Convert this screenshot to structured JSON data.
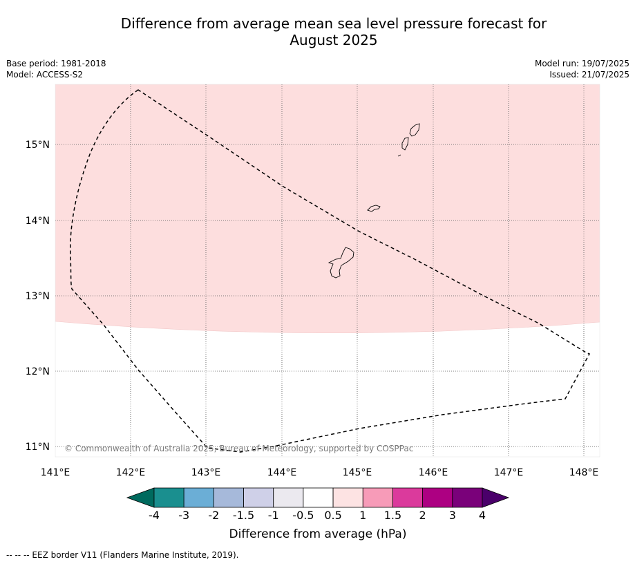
{
  "header": {
    "title_line1": "Difference from average mean sea level pressure forecast for",
    "title_line2": "August 2025",
    "base_period": "Base period: 1981-2018",
    "model": "Model: ACCESS-S2",
    "model_run": "Model run: 19/07/2025",
    "issued": "Issued: 21/07/2025"
  },
  "map": {
    "lon_ticks": [
      "141°E",
      "142°E",
      "143°E",
      "144°E",
      "145°E",
      "146°E",
      "147°E",
      "148°E"
    ],
    "lat_ticks": [
      "15°N",
      "14°N",
      "13°N",
      "12°N",
      "11°N"
    ],
    "copyright": "© Commonwealth of Australia 2025, Bureau of Meteorology, supported by COSPPac",
    "anomaly_color": "#fddede",
    "eez_line_color": "#000000"
  },
  "colorbar": {
    "labels": [
      "-4",
      "-3",
      "-2",
      "-1.5",
      "-1",
      "-0.5",
      "0.5",
      "1",
      "1.5",
      "2",
      "3",
      "4"
    ],
    "colors": [
      "#1a8f8f",
      "#6baed6",
      "#a6b9da",
      "#cfd0e8",
      "#ebe9ef",
      "#ffffff",
      "#fde3e3",
      "#f79bb8",
      "#db3a9c",
      "#ad0082",
      "#7a017a"
    ],
    "under_color": "#006a5e",
    "over_color": "#4a006a",
    "label": "Difference from average (hPa)"
  },
  "footer": {
    "legend_text": "--  --  -- EEZ border V11 (Flanders Marine Institute, 2019)."
  }
}
